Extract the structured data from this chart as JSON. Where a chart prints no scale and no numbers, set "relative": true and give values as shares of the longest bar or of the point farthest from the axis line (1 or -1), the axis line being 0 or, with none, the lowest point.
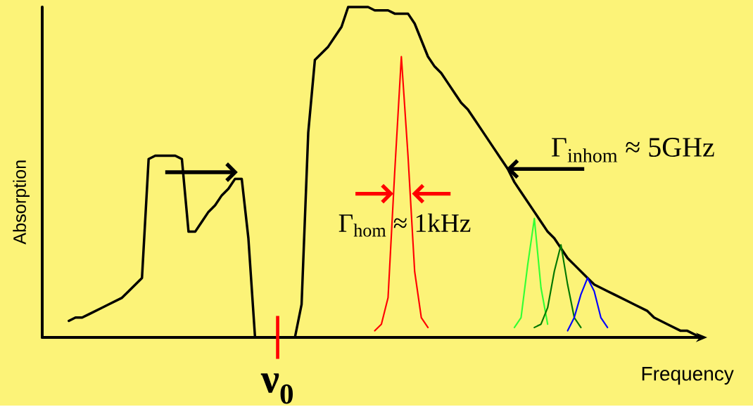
{
  "chart_data": {
    "type": "line",
    "relative": true,
    "xlabel": "Frequency",
    "ylabel": "Absorption",
    "marker": "none",
    "line_style": "solid",
    "categories": [
      null,
      null,
      null,
      null,
      null,
      null,
      null,
      null,
      null,
      null,
      null,
      null,
      null,
      null,
      null,
      null,
      null,
      null,
      null,
      null,
      null,
      null,
      null,
      null,
      null,
      null,
      null,
      null,
      null,
      null,
      null,
      null,
      null,
      null,
      null,
      null,
      null,
      null,
      null,
      null,
      null,
      null,
      null,
      null,
      null,
      null,
      null,
      null,
      null,
      null,
      null,
      null,
      null,
      null,
      null,
      null,
      null,
      null,
      null,
      null,
      null,
      null,
      null,
      null,
      null,
      null,
      null,
      null,
      null,
      null,
      null,
      null,
      null,
      null,
      null,
      null,
      null,
      null,
      null,
      null,
      null,
      null,
      null,
      null,
      null,
      null,
      null,
      null,
      null,
      null,
      null,
      null,
      null,
      null,
      null,
      null,
      null,
      null,
      null,
      null
    ],
    "annotations": [
      "Γ$_{hom}$ ≈ 1kHz",
      "Γ$_{inhom}$ ≈ 5GHz",
      "**ν$_{0}$**"
    ],
    "series": [
      {
        "color": "#000000",
        "values": [
          null,
          null,
          null,
          null,
          0.05,
          0.06,
          0.06,
          0.07,
          0.08,
          0.09,
          0.1,
          0.11,
          0.12,
          0.14,
          0.16,
          0.18,
          0.54,
          0.55,
          0.55,
          0.55,
          0.55,
          0.54,
          0.32,
          0.32,
          0.35,
          0.38,
          0.4,
          0.43,
          0.45,
          0.48,
          0.48,
          0.3,
          0,
          0,
          0,
          0,
          0,
          0,
          0,
          0.1,
          0.62,
          0.84,
          0.86,
          0.88,
          0.91,
          0.94,
          1,
          1,
          1,
          1,
          0.99,
          0.99,
          0.99,
          0.98,
          0.98,
          0.98,
          0.95,
          0.9,
          0.85,
          0.82,
          0.8,
          0.77,
          0.74,
          0.71,
          0.69,
          0.66,
          0.63,
          0.6,
          0.57,
          0.54,
          0.51,
          0.47,
          0.44,
          0.41,
          0.38,
          0.35,
          0.32,
          0.3,
          0.27,
          0.24,
          0.22,
          0.2,
          0.18,
          0.16,
          0.15,
          0.14,
          0.13,
          0.12,
          0.11,
          0.1,
          0.09,
          0.08,
          0.06,
          0.05,
          0.04,
          0.03,
          0.02,
          0.02,
          0.01,
          0
        ]
      },
      {
        "color": "#ff0000",
        "values": [
          null,
          null,
          null,
          null,
          null,
          null,
          null,
          null,
          null,
          null,
          null,
          null,
          null,
          null,
          null,
          null,
          null,
          null,
          null,
          null,
          null,
          null,
          null,
          null,
          null,
          null,
          null,
          null,
          null,
          null,
          null,
          null,
          null,
          null,
          null,
          null,
          null,
          null,
          null,
          null,
          null,
          null,
          null,
          null,
          null,
          null,
          null,
          null,
          null,
          null,
          0.02,
          0.04,
          0.12,
          0.5,
          0.85,
          0.55,
          0.2,
          0.06,
          0.03,
          null,
          null,
          null,
          null,
          null,
          null,
          null,
          null,
          null,
          null,
          null,
          null,
          null,
          null,
          null,
          null,
          null,
          null,
          null,
          null,
          null,
          null,
          null,
          null,
          null,
          null,
          null,
          null,
          null,
          null,
          null,
          null,
          null,
          null,
          null,
          null,
          null,
          null,
          null,
          null,
          null
        ]
      },
      {
        "color": "#33ff33",
        "values": [
          null,
          null,
          null,
          null,
          null,
          null,
          null,
          null,
          null,
          null,
          null,
          null,
          null,
          null,
          null,
          null,
          null,
          null,
          null,
          null,
          null,
          null,
          null,
          null,
          null,
          null,
          null,
          null,
          null,
          null,
          null,
          null,
          null,
          null,
          null,
          null,
          null,
          null,
          null,
          null,
          null,
          null,
          null,
          null,
          null,
          null,
          null,
          null,
          null,
          null,
          null,
          null,
          null,
          null,
          null,
          null,
          null,
          null,
          null,
          null,
          null,
          null,
          null,
          null,
          null,
          null,
          null,
          null,
          null,
          null,
          null,
          0.03,
          0.06,
          0.22,
          0.36,
          0.15,
          0.04,
          null,
          null,
          null,
          null,
          null,
          null,
          null,
          null,
          null,
          null,
          null,
          null,
          null,
          null,
          null,
          null,
          null,
          null,
          null,
          null,
          null,
          null,
          null
        ]
      },
      {
        "color": "#007700",
        "values": [
          null,
          null,
          null,
          null,
          null,
          null,
          null,
          null,
          null,
          null,
          null,
          null,
          null,
          null,
          null,
          null,
          null,
          null,
          null,
          null,
          null,
          null,
          null,
          null,
          null,
          null,
          null,
          null,
          null,
          null,
          null,
          null,
          null,
          null,
          null,
          null,
          null,
          null,
          null,
          null,
          null,
          null,
          null,
          null,
          null,
          null,
          null,
          null,
          null,
          null,
          null,
          null,
          null,
          null,
          null,
          null,
          null,
          null,
          null,
          null,
          null,
          null,
          null,
          null,
          null,
          null,
          null,
          null,
          null,
          null,
          null,
          null,
          null,
          null,
          0.03,
          0.04,
          0.09,
          0.2,
          0.28,
          0.16,
          0.06,
          0.03,
          null,
          null,
          null,
          null,
          null,
          null,
          null,
          null,
          null,
          null,
          null,
          null,
          null,
          null,
          null,
          null,
          null,
          null
        ]
      },
      {
        "color": "#0000ff",
        "values": [
          null,
          null,
          null,
          null,
          null,
          null,
          null,
          null,
          null,
          null,
          null,
          null,
          null,
          null,
          null,
          null,
          null,
          null,
          null,
          null,
          null,
          null,
          null,
          null,
          null,
          null,
          null,
          null,
          null,
          null,
          null,
          null,
          null,
          null,
          null,
          null,
          null,
          null,
          null,
          null,
          null,
          null,
          null,
          null,
          null,
          null,
          null,
          null,
          null,
          null,
          null,
          null,
          null,
          null,
          null,
          null,
          null,
          null,
          null,
          null,
          null,
          null,
          null,
          null,
          null,
          null,
          null,
          null,
          null,
          null,
          null,
          null,
          null,
          null,
          null,
          null,
          null,
          null,
          null,
          0.02,
          0.06,
          0.13,
          0.18,
          0.14,
          0.06,
          0.03,
          null,
          null,
          null,
          null,
          null,
          null,
          null,
          null,
          null,
          null,
          null,
          null,
          null,
          null
        ]
      }
    ]
  }
}
